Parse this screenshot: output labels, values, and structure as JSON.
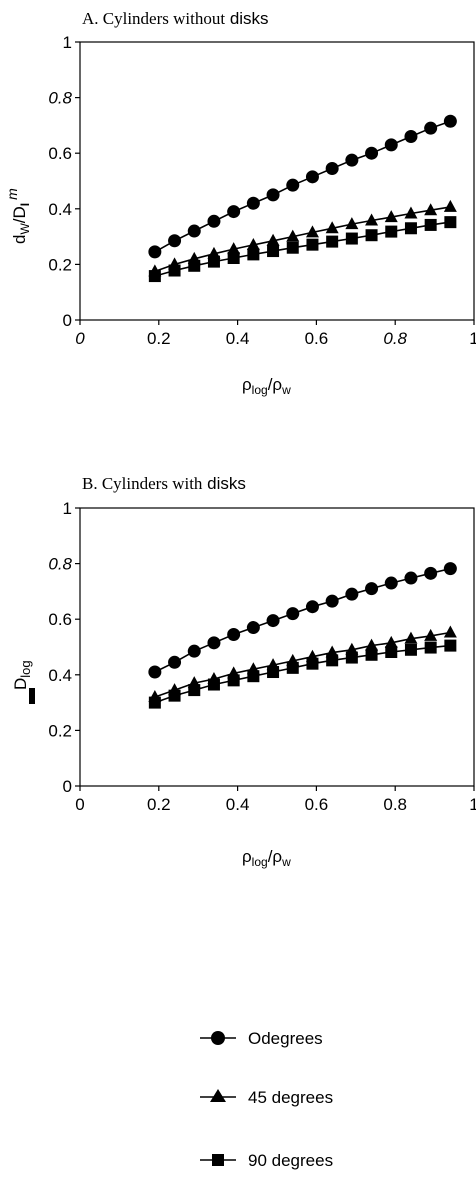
{
  "chart_data": [
    {
      "type": "line",
      "title": "A. Cylinders without disks",
      "title_parts": [
        "A. Cylinders",
        " without",
        " disks"
      ],
      "xlabel_parts": {
        "main": "ρ",
        "sub1": "log",
        "slash": "/ρ",
        "sub2": "w"
      },
      "ylabel_parts": {
        "a": "d",
        "b": "W",
        "c": "/D",
        "d": "I",
        "e": "m"
      },
      "xlim": [
        0,
        1
      ],
      "ylim": [
        0,
        1
      ],
      "xticks": [
        "0",
        "0.2",
        "0.4",
        "0.6",
        "0.8",
        "1"
      ],
      "yticks": [
        "0",
        "0.2",
        "0.4",
        "0.6",
        "0.8",
        "1"
      ],
      "italic_xticks": [
        0,
        4
      ],
      "italic_yticks": [
        4
      ],
      "grid": false,
      "series": [
        {
          "name": "Odegrees",
          "marker": "circle",
          "x": [
            0.19,
            0.24,
            0.29,
            0.34,
            0.39,
            0.44,
            0.49,
            0.54,
            0.59,
            0.64,
            0.69,
            0.74,
            0.79,
            0.84,
            0.89,
            0.94
          ],
          "y": [
            0.245,
            0.285,
            0.32,
            0.355,
            0.39,
            0.42,
            0.45,
            0.485,
            0.515,
            0.545,
            0.575,
            0.6,
            0.63,
            0.66,
            0.69,
            0.715
          ]
        },
        {
          "name": "45 degrees",
          "marker": "triangle",
          "x": [
            0.19,
            0.24,
            0.29,
            0.34,
            0.39,
            0.44,
            0.49,
            0.54,
            0.59,
            0.64,
            0.69,
            0.74,
            0.79,
            0.84,
            0.89,
            0.94
          ],
          "y": [
            0.175,
            0.2,
            0.22,
            0.238,
            0.255,
            0.27,
            0.285,
            0.3,
            0.315,
            0.33,
            0.345,
            0.358,
            0.37,
            0.383,
            0.395,
            0.407
          ]
        },
        {
          "name": "90 degrees",
          "marker": "square",
          "x": [
            0.19,
            0.24,
            0.29,
            0.34,
            0.39,
            0.44,
            0.49,
            0.54,
            0.59,
            0.64,
            0.69,
            0.74,
            0.79,
            0.84,
            0.89,
            0.94
          ],
          "y": [
            0.158,
            0.178,
            0.195,
            0.21,
            0.223,
            0.236,
            0.248,
            0.26,
            0.271,
            0.282,
            0.293,
            0.305,
            0.318,
            0.33,
            0.342,
            0.352
          ]
        }
      ]
    },
    {
      "type": "line",
      "title": "B. Cylinders with disks",
      "title_parts": [
        "B. Cylinders",
        " with",
        " disks"
      ],
      "xlabel_parts": {
        "main": "ρ",
        "sub1": "log",
        "slash": "/ρ",
        "sub2": "w"
      },
      "ylabel_parts": {
        "a": "D",
        "b": "log"
      },
      "xlim": [
        0,
        1
      ],
      "ylim": [
        0,
        1
      ],
      "xticks": [
        "0",
        "0.2",
        "0.4",
        "0.6",
        "0.8",
        "1"
      ],
      "yticks": [
        "0",
        "0.2",
        "0.4",
        "0.6",
        "0.8",
        "1"
      ],
      "italic_xticks": [],
      "italic_yticks": [
        4
      ],
      "grid": false,
      "series": [
        {
          "name": "Odegrees",
          "marker": "circle",
          "x": [
            0.19,
            0.24,
            0.29,
            0.34,
            0.39,
            0.44,
            0.49,
            0.54,
            0.59,
            0.64,
            0.69,
            0.74,
            0.79,
            0.84,
            0.89,
            0.94
          ],
          "y": [
            0.41,
            0.445,
            0.485,
            0.515,
            0.545,
            0.57,
            0.595,
            0.62,
            0.645,
            0.665,
            0.69,
            0.71,
            0.73,
            0.748,
            0.765,
            0.782
          ]
        },
        {
          "name": "45 degrees",
          "marker": "triangle",
          "x": [
            0.19,
            0.24,
            0.29,
            0.34,
            0.39,
            0.44,
            0.49,
            0.54,
            0.59,
            0.64,
            0.69,
            0.74,
            0.79,
            0.84,
            0.89,
            0.94
          ],
          "y": [
            0.32,
            0.345,
            0.37,
            0.385,
            0.405,
            0.42,
            0.435,
            0.45,
            0.465,
            0.48,
            0.49,
            0.505,
            0.515,
            0.53,
            0.54,
            0.552
          ]
        },
        {
          "name": "90 degrees",
          "marker": "square",
          "x": [
            0.19,
            0.24,
            0.29,
            0.34,
            0.39,
            0.44,
            0.49,
            0.54,
            0.59,
            0.64,
            0.69,
            0.74,
            0.79,
            0.84,
            0.89,
            0.94
          ],
          "y": [
            0.3,
            0.325,
            0.345,
            0.365,
            0.38,
            0.395,
            0.41,
            0.425,
            0.44,
            0.452,
            0.462,
            0.472,
            0.482,
            0.49,
            0.498,
            0.505
          ]
        }
      ]
    }
  ],
  "legend": {
    "items": [
      {
        "label": "Odegrees",
        "marker": "circle"
      },
      {
        "label": "45 degrees",
        "marker": "triangle"
      },
      {
        "label": "90 degrees",
        "marker": "square"
      }
    ]
  }
}
